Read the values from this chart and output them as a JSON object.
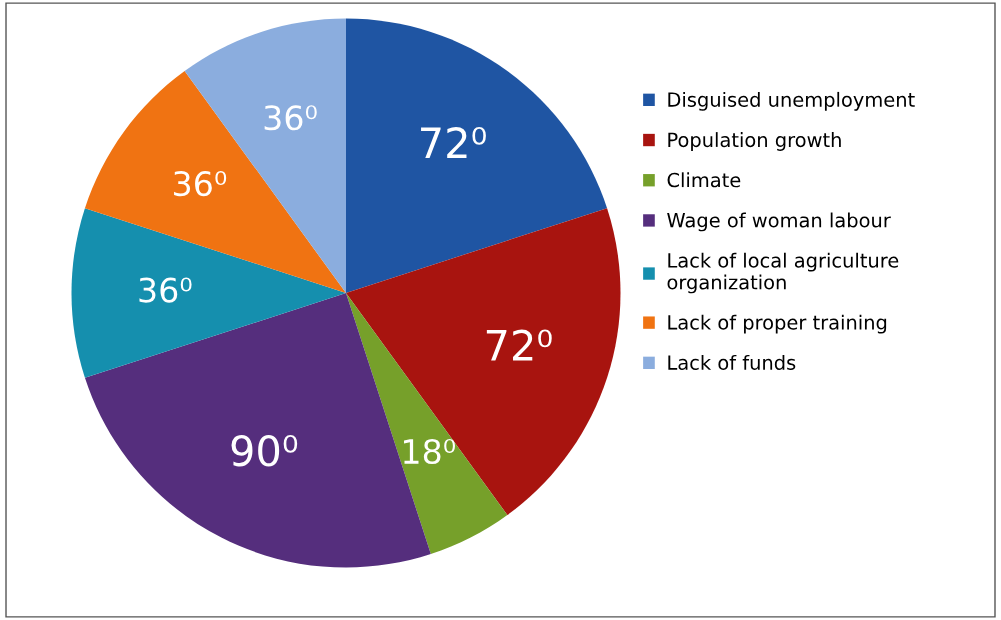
{
  "chart_data": {
    "type": "pie",
    "categories": [
      "Disguised unemployment",
      "Population growth",
      "Climate",
      "Wage of woman labour",
      "Lack of local agriculture\norganization",
      "Lack of proper training",
      "Lack of funds"
    ],
    "values": [
      72,
      72,
      18,
      90,
      36,
      36,
      36
    ],
    "value_labels": [
      "72⁰",
      "72⁰",
      "18⁰",
      "90⁰",
      "36⁰",
      "36⁰",
      "36⁰"
    ],
    "colors": [
      "#1f55a3",
      "#a8140f",
      "#76a02a",
      "#552e7d",
      "#158fae",
      "#f07312",
      "#8badde"
    ],
    "legend": "right"
  }
}
